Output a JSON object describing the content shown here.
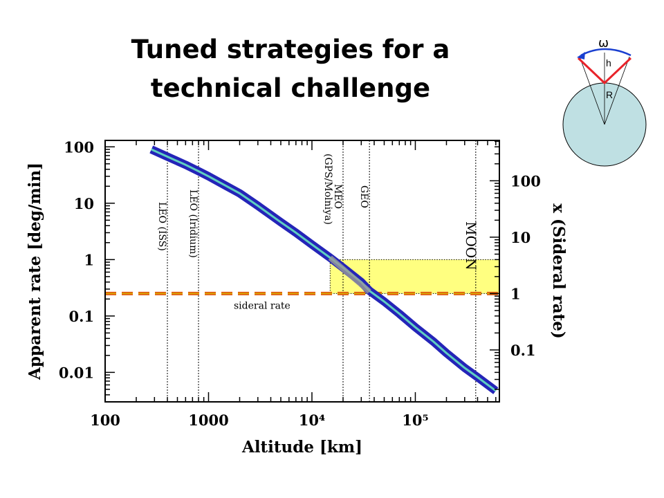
{
  "slide": {
    "title_line1": "Tuned strategies for a",
    "title_line2": "technical challenge"
  },
  "inset": {
    "omega_label": "ω",
    "h_label": "h",
    "r_label": "R",
    "colors": {
      "earth": "#bfe0e3",
      "cone": "#e8232a",
      "arc": "#1a3fd0"
    }
  },
  "chart_data": {
    "type": "line",
    "xlabel": "Altitude [km]",
    "ylabel": "Apparent rate [deg/min]",
    "y2label": "x (Sideral rate)",
    "xscale": "log",
    "yscale": "log",
    "xlim": [
      100,
      650000
    ],
    "ylim": [
      0.003,
      130
    ],
    "x_ticks": [
      {
        "value": 100,
        "label": "100"
      },
      {
        "value": 1000,
        "label": "1000"
      },
      {
        "value": 10000,
        "label": "10⁴"
      },
      {
        "value": 100000,
        "label": "10⁵"
      }
    ],
    "y_ticks": [
      {
        "value": 100,
        "label": "100"
      },
      {
        "value": 10,
        "label": "10"
      },
      {
        "value": 1,
        "label": "1"
      },
      {
        "value": 0.1,
        "label": "0.1"
      },
      {
        "value": 0.01,
        "label": "0.01"
      }
    ],
    "y2_ticks": [
      {
        "value": 100,
        "label": "100"
      },
      {
        "value": 10,
        "label": "10"
      },
      {
        "value": 1,
        "label": "1"
      },
      {
        "value": 0.1,
        "label": "0.1"
      }
    ],
    "sidereal_rate_deg_per_min": 0.25,
    "series": [
      {
        "name": "",
        "x": [
          280,
          400,
          600,
          800,
          1000,
          1500,
          2000,
          3000,
          5000,
          7000,
          10000,
          15000,
          20000,
          30000,
          36000,
          50000,
          70000,
          100000,
          150000,
          200000,
          300000,
          400000,
          600000
        ],
        "y": [
          90,
          67,
          48,
          37,
          30,
          20,
          15,
          9,
          4.6,
          3.0,
          1.85,
          1.08,
          0.72,
          0.4,
          0.28,
          0.18,
          0.11,
          0.063,
          0.035,
          0.022,
          0.012,
          0.0082,
          0.0047
        ]
      }
    ],
    "vlines": [
      {
        "x": 400,
        "label": "LEO (ISS)"
      },
      {
        "x": 800,
        "label": "LEO (Iridium)"
      },
      {
        "x": 20000,
        "label": "MEO",
        "label2": "(GPS/Molniya)"
      },
      {
        "x": 36000,
        "label": "GEO"
      },
      {
        "x": 384000,
        "label": "MOON"
      }
    ],
    "sidereal_label": "sideral rate",
    "highlight_region": {
      "x": [
        15000,
        650000
      ],
      "y": [
        0.25,
        1
      ]
    },
    "colors": {
      "curve_outer": "#2424b8",
      "curve_inner": "#5fd0c0",
      "sidereal_outer": "#e05a10",
      "sidereal_inner": "#d8b000",
      "highlight": "#ffff80"
    }
  }
}
